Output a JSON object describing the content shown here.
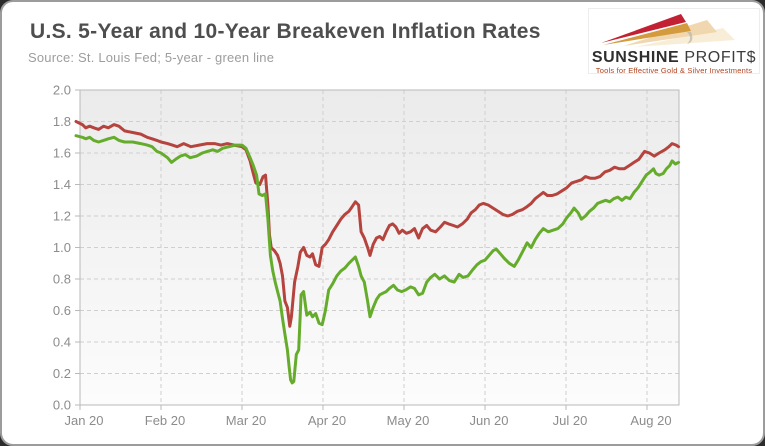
{
  "header": {
    "title": "U.S. 5-Year and 10-Year Breakeven Inflation Rates",
    "source_note": "Source: St. Louis Fed; 5-year - green line"
  },
  "logo": {
    "brand_bold": "SUNSHINE",
    "brand_light": "PROFIT$",
    "tagline": "Tools for Effective Gold & Silver Investments",
    "colors": {
      "arrow_red": "#c22133",
      "arrow_gold": "#d49a3e",
      "arrow_pale": "#eed3a6",
      "arrow_faint": "#f6e8cd",
      "tagline_red": "#b0431f"
    }
  },
  "chart_data": {
    "type": "line",
    "title": "U.S. 5-Year and 10-Year Breakeven Inflation Rates",
    "xlabel": "",
    "ylabel": "",
    "ylim": [
      0.0,
      2.0
    ],
    "y_tick_step": 0.2,
    "y_tick_labels": [
      "0.0",
      "0.2",
      "0.4",
      "0.6",
      "0.8",
      "1.0",
      "1.2",
      "1.4",
      "1.6",
      "1.8",
      "2.0"
    ],
    "x_tick_labels": [
      "Jan 20",
      "Feb 20",
      "Mar 20",
      "Apr 20",
      "May 20",
      "Jun 20",
      "Jul 20",
      "Aug 20"
    ],
    "xlim_months": [
      -0.05,
      7.4
    ],
    "grid": "dashed",
    "legend": "none (identified in subtitle: 5-year is the green line)",
    "colors": {
      "axis_label": "#8c8c8c",
      "grid_line": "#cfcfcf",
      "plot_border": "#b9b9b9",
      "plot_bg_top": "#ebebeb",
      "plot_bg_bottom": "#fcfcfc"
    },
    "series": [
      {
        "name": "10-Year Breakeven Inflation Rate",
        "color": "#b5433e",
        "points": [
          [
            -0.05,
            1.8
          ],
          [
            0.03,
            1.78
          ],
          [
            0.07,
            1.76
          ],
          [
            0.12,
            1.77
          ],
          [
            0.17,
            1.76
          ],
          [
            0.23,
            1.75
          ],
          [
            0.29,
            1.77
          ],
          [
            0.35,
            1.76
          ],
          [
            0.42,
            1.78
          ],
          [
            0.48,
            1.77
          ],
          [
            0.55,
            1.74
          ],
          [
            0.65,
            1.73
          ],
          [
            0.75,
            1.72
          ],
          [
            0.83,
            1.7
          ],
          [
            0.89,
            1.69
          ],
          [
            0.95,
            1.68
          ],
          [
            1.0,
            1.67
          ],
          [
            1.08,
            1.66
          ],
          [
            1.14,
            1.65
          ],
          [
            1.2,
            1.64
          ],
          [
            1.28,
            1.66
          ],
          [
            1.37,
            1.64
          ],
          [
            1.47,
            1.65
          ],
          [
            1.57,
            1.66
          ],
          [
            1.66,
            1.66
          ],
          [
            1.74,
            1.65
          ],
          [
            1.82,
            1.66
          ],
          [
            1.9,
            1.65
          ],
          [
            2.0,
            1.64
          ],
          [
            2.05,
            1.62
          ],
          [
            2.1,
            1.55
          ],
          [
            2.14,
            1.47
          ],
          [
            2.17,
            1.41
          ],
          [
            2.22,
            1.4
          ],
          [
            2.26,
            1.45
          ],
          [
            2.29,
            1.46
          ],
          [
            2.32,
            1.27
          ],
          [
            2.34,
            1.08
          ],
          [
            2.36,
            1.0
          ],
          [
            2.4,
            0.98
          ],
          [
            2.44,
            0.95
          ],
          [
            2.47,
            0.9
          ],
          [
            2.5,
            0.82
          ],
          [
            2.53,
            0.66
          ],
          [
            2.56,
            0.62
          ],
          [
            2.59,
            0.5
          ],
          [
            2.61,
            0.56
          ],
          [
            2.65,
            0.78
          ],
          [
            2.69,
            0.88
          ],
          [
            2.72,
            0.97
          ],
          [
            2.76,
            1.0
          ],
          [
            2.8,
            0.95
          ],
          [
            2.84,
            0.94
          ],
          [
            2.87,
            0.96
          ],
          [
            2.91,
            0.89
          ],
          [
            2.95,
            0.88
          ],
          [
            2.99,
            1.0
          ],
          [
            3.03,
            1.02
          ],
          [
            3.07,
            1.05
          ],
          [
            3.12,
            1.1
          ],
          [
            3.17,
            1.14
          ],
          [
            3.22,
            1.18
          ],
          [
            3.27,
            1.21
          ],
          [
            3.32,
            1.23
          ],
          [
            3.36,
            1.26
          ],
          [
            3.4,
            1.29
          ],
          [
            3.44,
            1.27
          ],
          [
            3.47,
            1.1
          ],
          [
            3.51,
            1.06
          ],
          [
            3.55,
            1.0
          ],
          [
            3.58,
            0.95
          ],
          [
            3.62,
            1.02
          ],
          [
            3.66,
            1.06
          ],
          [
            3.7,
            1.07
          ],
          [
            3.74,
            1.05
          ],
          [
            3.78,
            1.1
          ],
          [
            3.82,
            1.14
          ],
          [
            3.86,
            1.15
          ],
          [
            3.9,
            1.13
          ],
          [
            3.94,
            1.09
          ],
          [
            3.98,
            1.11
          ],
          [
            4.03,
            1.09
          ],
          [
            4.08,
            1.1
          ],
          [
            4.13,
            1.12
          ],
          [
            4.18,
            1.06
          ],
          [
            4.23,
            1.12
          ],
          [
            4.28,
            1.14
          ],
          [
            4.33,
            1.11
          ],
          [
            4.39,
            1.1
          ],
          [
            4.45,
            1.13
          ],
          [
            4.5,
            1.16
          ],
          [
            4.55,
            1.15
          ],
          [
            4.61,
            1.14
          ],
          [
            4.66,
            1.13
          ],
          [
            4.72,
            1.15
          ],
          [
            4.78,
            1.18
          ],
          [
            4.83,
            1.22
          ],
          [
            4.88,
            1.24
          ],
          [
            4.93,
            1.27
          ],
          [
            4.98,
            1.28
          ],
          [
            5.04,
            1.27
          ],
          [
            5.1,
            1.25
          ],
          [
            5.16,
            1.23
          ],
          [
            5.22,
            1.21
          ],
          [
            5.28,
            1.2
          ],
          [
            5.34,
            1.21
          ],
          [
            5.4,
            1.23
          ],
          [
            5.46,
            1.24
          ],
          [
            5.52,
            1.26
          ],
          [
            5.57,
            1.28
          ],
          [
            5.62,
            1.31
          ],
          [
            5.67,
            1.33
          ],
          [
            5.72,
            1.35
          ],
          [
            5.77,
            1.33
          ],
          [
            5.83,
            1.33
          ],
          [
            5.89,
            1.34
          ],
          [
            5.95,
            1.36
          ],
          [
            6.01,
            1.38
          ],
          [
            6.07,
            1.41
          ],
          [
            6.13,
            1.42
          ],
          [
            6.19,
            1.43
          ],
          [
            6.24,
            1.45
          ],
          [
            6.3,
            1.44
          ],
          [
            6.36,
            1.44
          ],
          [
            6.42,
            1.45
          ],
          [
            6.48,
            1.48
          ],
          [
            6.54,
            1.49
          ],
          [
            6.6,
            1.51
          ],
          [
            6.66,
            1.5
          ],
          [
            6.72,
            1.5
          ],
          [
            6.78,
            1.52
          ],
          [
            6.84,
            1.54
          ],
          [
            6.9,
            1.56
          ],
          [
            6.97,
            1.61
          ],
          [
            7.03,
            1.6
          ],
          [
            7.09,
            1.58
          ],
          [
            7.15,
            1.6
          ],
          [
            7.22,
            1.62
          ],
          [
            7.27,
            1.64
          ],
          [
            7.31,
            1.66
          ],
          [
            7.36,
            1.65
          ],
          [
            7.39,
            1.64
          ]
        ]
      },
      {
        "name": "5-Year Breakeven Inflation Rate",
        "color": "#66ac2c",
        "points": [
          [
            -0.05,
            1.71
          ],
          [
            0.03,
            1.7
          ],
          [
            0.07,
            1.69
          ],
          [
            0.12,
            1.7
          ],
          [
            0.17,
            1.68
          ],
          [
            0.23,
            1.67
          ],
          [
            0.29,
            1.68
          ],
          [
            0.35,
            1.69
          ],
          [
            0.42,
            1.7
          ],
          [
            0.48,
            1.68
          ],
          [
            0.55,
            1.67
          ],
          [
            0.65,
            1.67
          ],
          [
            0.75,
            1.66
          ],
          [
            0.83,
            1.65
          ],
          [
            0.89,
            1.64
          ],
          [
            0.95,
            1.61
          ],
          [
            1.0,
            1.6
          ],
          [
            1.08,
            1.57
          ],
          [
            1.13,
            1.54
          ],
          [
            1.18,
            1.56
          ],
          [
            1.24,
            1.58
          ],
          [
            1.3,
            1.59
          ],
          [
            1.36,
            1.57
          ],
          [
            1.44,
            1.58
          ],
          [
            1.51,
            1.6
          ],
          [
            1.57,
            1.61
          ],
          [
            1.64,
            1.62
          ],
          [
            1.7,
            1.61
          ],
          [
            1.76,
            1.63
          ],
          [
            1.84,
            1.64
          ],
          [
            1.92,
            1.65
          ],
          [
            2.0,
            1.65
          ],
          [
            2.05,
            1.63
          ],
          [
            2.1,
            1.57
          ],
          [
            2.14,
            1.52
          ],
          [
            2.18,
            1.46
          ],
          [
            2.21,
            1.34
          ],
          [
            2.25,
            1.33
          ],
          [
            2.29,
            1.34
          ],
          [
            2.32,
            1.18
          ],
          [
            2.35,
            0.95
          ],
          [
            2.38,
            0.85
          ],
          [
            2.41,
            0.78
          ],
          [
            2.44,
            0.72
          ],
          [
            2.47,
            0.66
          ],
          [
            2.5,
            0.55
          ],
          [
            2.53,
            0.45
          ],
          [
            2.56,
            0.35
          ],
          [
            2.58,
            0.25
          ],
          [
            2.6,
            0.16
          ],
          [
            2.62,
            0.14
          ],
          [
            2.64,
            0.15
          ],
          [
            2.67,
            0.32
          ],
          [
            2.7,
            0.35
          ],
          [
            2.73,
            0.7
          ],
          [
            2.76,
            0.72
          ],
          [
            2.8,
            0.57
          ],
          [
            2.84,
            0.59
          ],
          [
            2.87,
            0.56
          ],
          [
            2.91,
            0.58
          ],
          [
            2.95,
            0.52
          ],
          [
            2.99,
            0.51
          ],
          [
            3.03,
            0.6
          ],
          [
            3.07,
            0.73
          ],
          [
            3.12,
            0.77
          ],
          [
            3.17,
            0.82
          ],
          [
            3.22,
            0.85
          ],
          [
            3.27,
            0.87
          ],
          [
            3.32,
            0.9
          ],
          [
            3.36,
            0.92
          ],
          [
            3.4,
            0.94
          ],
          [
            3.44,
            0.88
          ],
          [
            3.47,
            0.82
          ],
          [
            3.51,
            0.78
          ],
          [
            3.55,
            0.66
          ],
          [
            3.58,
            0.56
          ],
          [
            3.62,
            0.62
          ],
          [
            3.66,
            0.67
          ],
          [
            3.7,
            0.7
          ],
          [
            3.74,
            0.71
          ],
          [
            3.78,
            0.72
          ],
          [
            3.82,
            0.74
          ],
          [
            3.87,
            0.76
          ],
          [
            3.92,
            0.73
          ],
          [
            3.97,
            0.72
          ],
          [
            4.02,
            0.73
          ],
          [
            4.08,
            0.75
          ],
          [
            4.13,
            0.74
          ],
          [
            4.18,
            0.7
          ],
          [
            4.23,
            0.71
          ],
          [
            4.28,
            0.78
          ],
          [
            4.33,
            0.81
          ],
          [
            4.38,
            0.83
          ],
          [
            4.44,
            0.8
          ],
          [
            4.5,
            0.82
          ],
          [
            4.56,
            0.79
          ],
          [
            4.62,
            0.78
          ],
          [
            4.68,
            0.83
          ],
          [
            4.73,
            0.81
          ],
          [
            4.79,
            0.82
          ],
          [
            4.85,
            0.86
          ],
          [
            4.9,
            0.89
          ],
          [
            4.95,
            0.91
          ],
          [
            5.0,
            0.92
          ],
          [
            5.05,
            0.95
          ],
          [
            5.1,
            0.98
          ],
          [
            5.14,
            0.99
          ],
          [
            5.19,
            0.96
          ],
          [
            5.24,
            0.93
          ],
          [
            5.3,
            0.9
          ],
          [
            5.36,
            0.88
          ],
          [
            5.41,
            0.92
          ],
          [
            5.47,
            0.98
          ],
          [
            5.52,
            1.03
          ],
          [
            5.57,
            1.0
          ],
          [
            5.62,
            1.05
          ],
          [
            5.67,
            1.09
          ],
          [
            5.72,
            1.12
          ],
          [
            5.78,
            1.1
          ],
          [
            5.84,
            1.11
          ],
          [
            5.9,
            1.12
          ],
          [
            5.96,
            1.15
          ],
          [
            6.01,
            1.19
          ],
          [
            6.06,
            1.22
          ],
          [
            6.1,
            1.25
          ],
          [
            6.15,
            1.22
          ],
          [
            6.19,
            1.18
          ],
          [
            6.24,
            1.2
          ],
          [
            6.29,
            1.23
          ],
          [
            6.34,
            1.25
          ],
          [
            6.39,
            1.28
          ],
          [
            6.44,
            1.29
          ],
          [
            6.49,
            1.3
          ],
          [
            6.54,
            1.29
          ],
          [
            6.59,
            1.31
          ],
          [
            6.64,
            1.32
          ],
          [
            6.69,
            1.3
          ],
          [
            6.74,
            1.32
          ],
          [
            6.79,
            1.31
          ],
          [
            6.84,
            1.35
          ],
          [
            6.89,
            1.38
          ],
          [
            6.94,
            1.42
          ],
          [
            6.99,
            1.46
          ],
          [
            7.04,
            1.48
          ],
          [
            7.08,
            1.5
          ],
          [
            7.11,
            1.47
          ],
          [
            7.15,
            1.46
          ],
          [
            7.2,
            1.47
          ],
          [
            7.24,
            1.5
          ],
          [
            7.28,
            1.52
          ],
          [
            7.31,
            1.55
          ],
          [
            7.35,
            1.53
          ],
          [
            7.39,
            1.54
          ]
        ]
      }
    ]
  }
}
